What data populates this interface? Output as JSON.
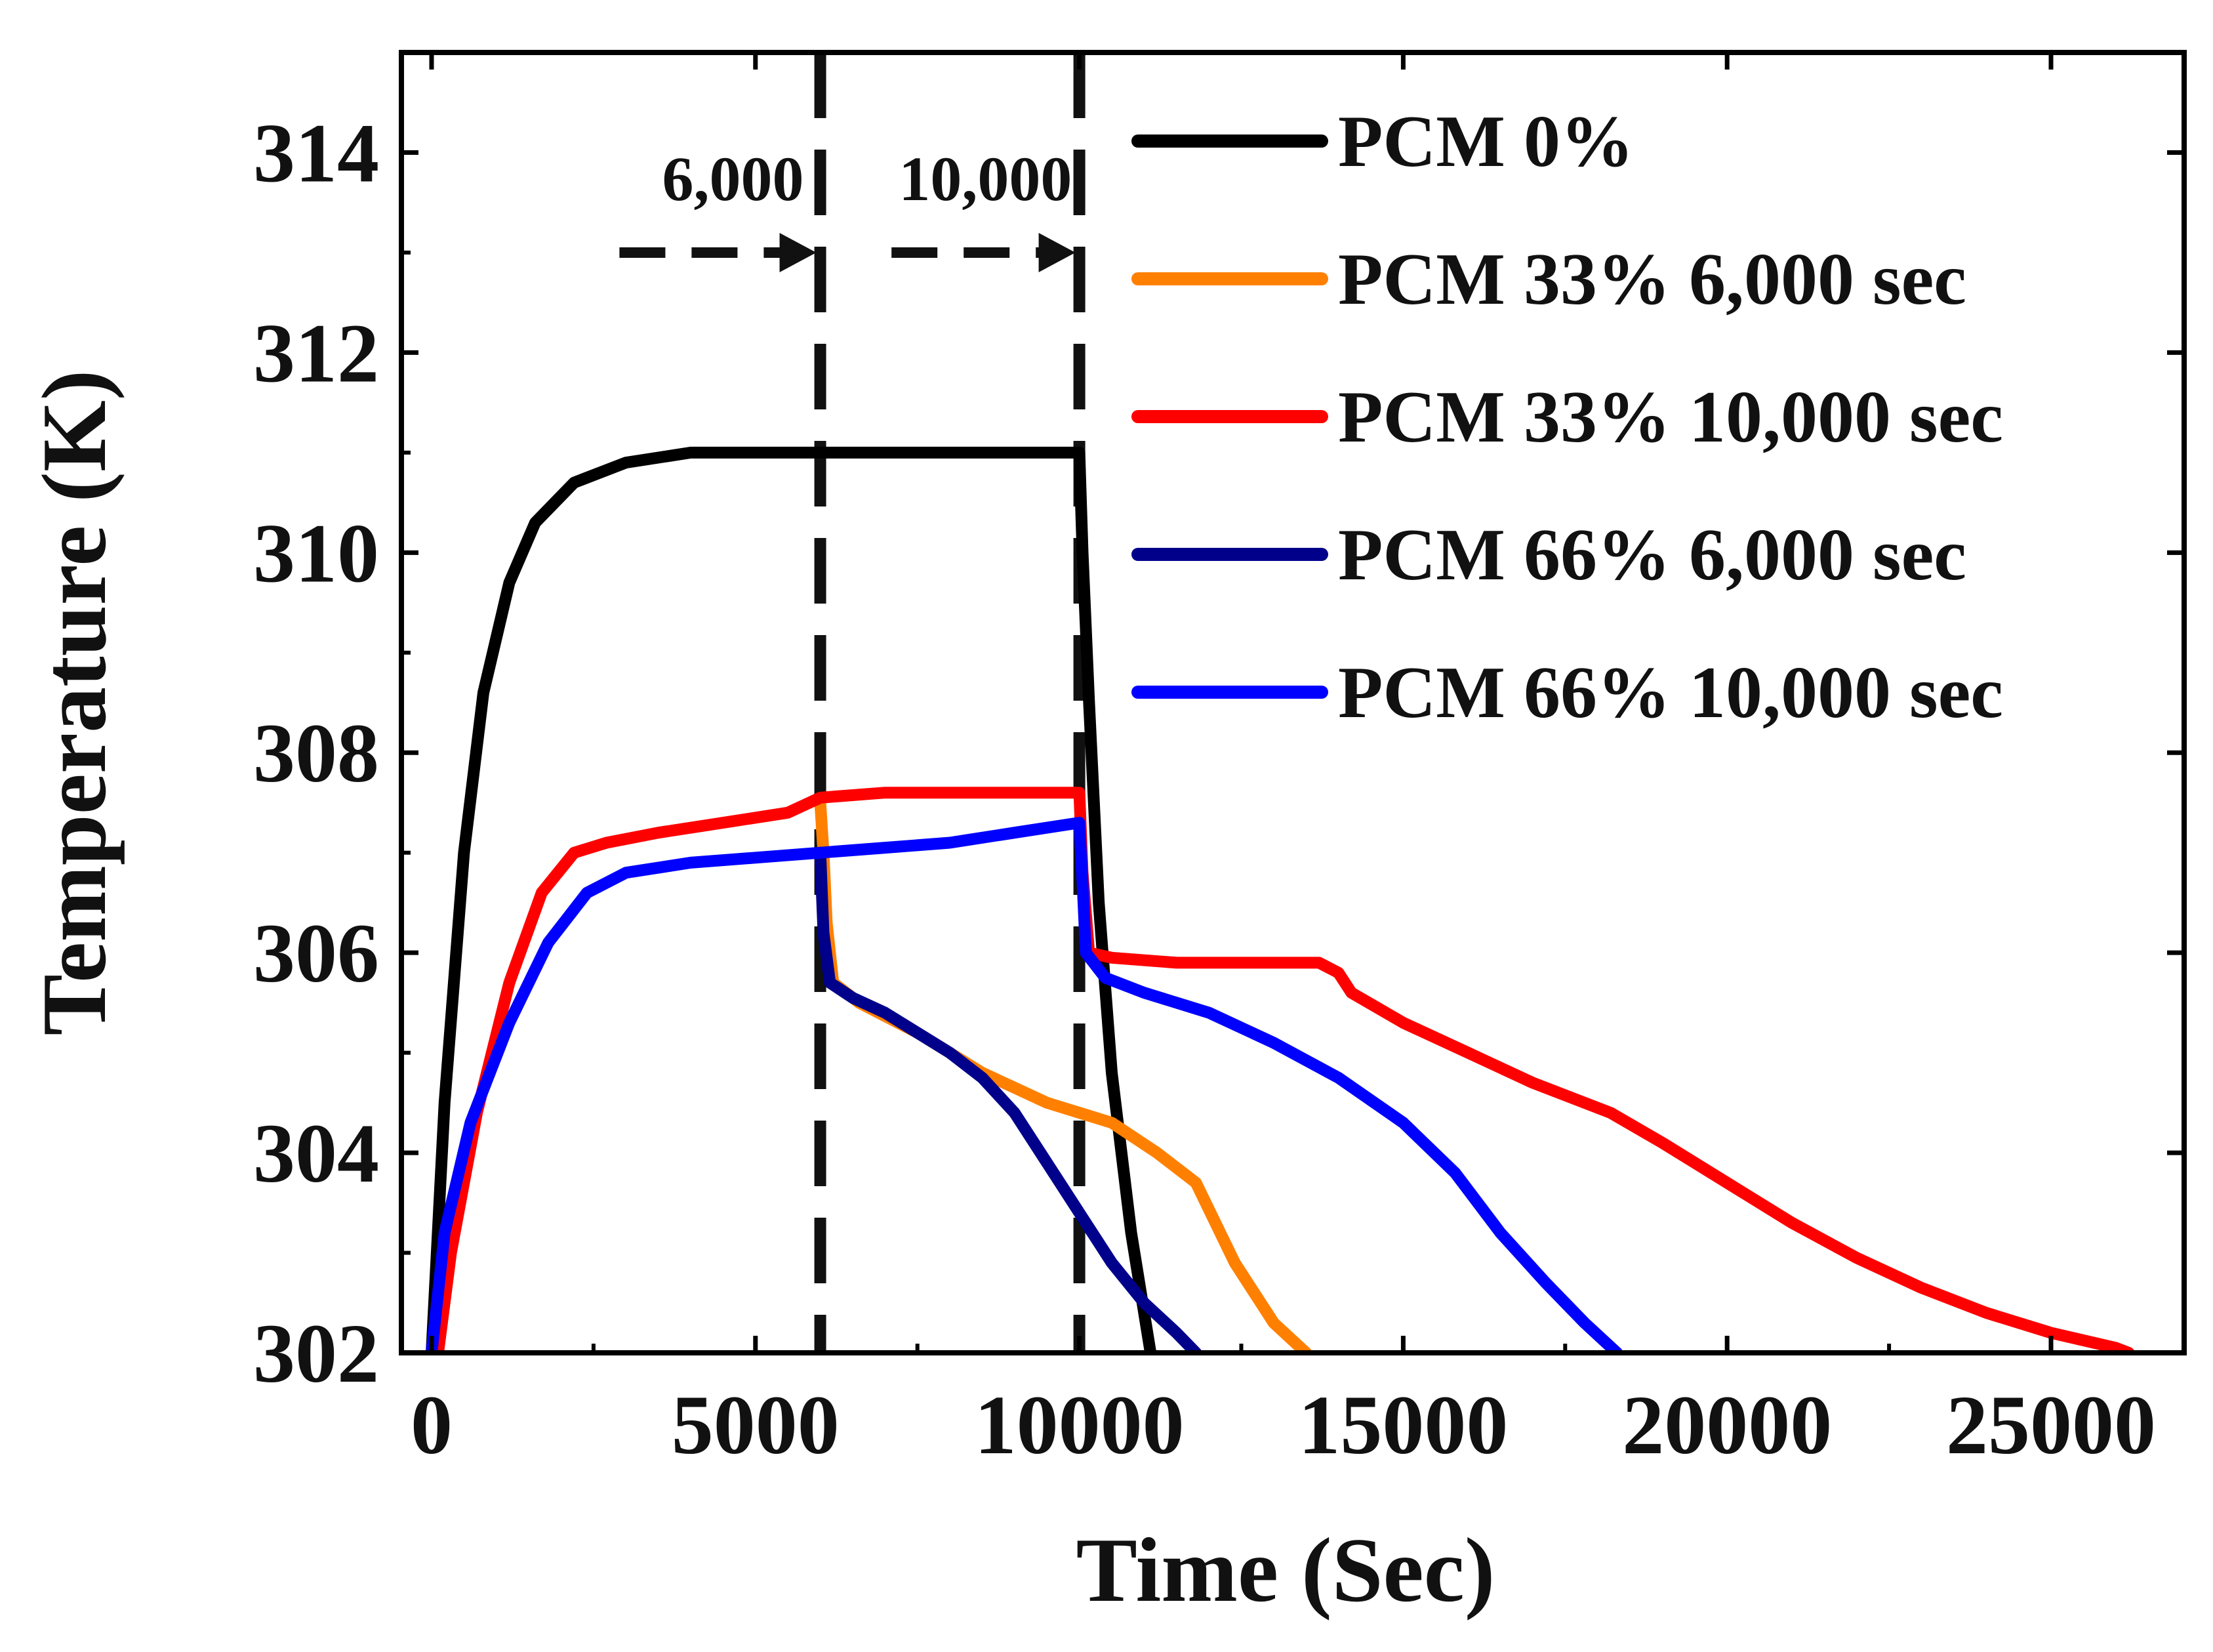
{
  "chart_data": {
    "type": "line",
    "xlabel": "Time (Sec)",
    "ylabel": "Temperature (K)",
    "xlim": [
      -600,
      26600
    ],
    "ylim": [
      302,
      315
    ],
    "x_ticks": [
      0,
      5000,
      10000,
      15000,
      20000,
      25000
    ],
    "x_tick_labels": [
      "0",
      "5000",
      "10000",
      "15000",
      "20000",
      "25000"
    ],
    "y_ticks": [
      302,
      304,
      306,
      308,
      310,
      312,
      314
    ],
    "y_tick_labels": [
      "302",
      "304",
      "306",
      "308",
      "310",
      "312",
      "314"
    ],
    "grid": false,
    "legend_position": "top-right",
    "vlines": [
      6000,
      10000
    ],
    "annotations": [
      {
        "text": "6,000",
        "x_start": 2900,
        "x_end": 6000,
        "y": 313
      },
      {
        "text": "10,000",
        "x_start": 7100,
        "x_end": 10000,
        "y": 313
      }
    ],
    "series": [
      {
        "name": "PCM 0%",
        "color": "#000000",
        "points": [
          [
            0,
            302
          ],
          [
            200,
            304.5
          ],
          [
            500,
            307
          ],
          [
            800,
            308.6
          ],
          [
            1200,
            309.7
          ],
          [
            1600,
            310.3
          ],
          [
            2200,
            310.7
          ],
          [
            3000,
            310.9
          ],
          [
            4000,
            311
          ],
          [
            6000,
            311
          ],
          [
            9000,
            311
          ],
          [
            10000,
            311
          ],
          [
            10050,
            310
          ],
          [
            10150,
            308.5
          ],
          [
            10300,
            306.5
          ],
          [
            10500,
            304.8
          ],
          [
            10800,
            303.2
          ],
          [
            11100,
            302
          ]
        ]
      },
      {
        "name": "PCM 33% 6,000 sec",
        "color": "#ff8000",
        "points": [
          [
            6000,
            307.5
          ],
          [
            6050,
            307
          ],
          [
            6100,
            306.3
          ],
          [
            6200,
            305.7
          ],
          [
            6600,
            305.5
          ],
          [
            7500,
            305.2
          ],
          [
            8500,
            304.8
          ],
          [
            9500,
            304.5
          ],
          [
            10500,
            304.3
          ],
          [
            11200,
            304
          ],
          [
            11800,
            303.7
          ],
          [
            12400,
            302.9
          ],
          [
            13000,
            302.3
          ],
          [
            13500,
            302
          ]
        ]
      },
      {
        "name": "PCM 33% 10,000 sec",
        "color": "#ff0000",
        "points": [
          [
            100,
            302
          ],
          [
            300,
            303
          ],
          [
            700,
            304.4
          ],
          [
            1200,
            305.7
          ],
          [
            1700,
            306.6
          ],
          [
            2200,
            307
          ],
          [
            2700,
            307.1
          ],
          [
            3500,
            307.2
          ],
          [
            4500,
            307.3
          ],
          [
            5500,
            307.4
          ],
          [
            6000,
            307.55
          ],
          [
            7000,
            307.6
          ],
          [
            8000,
            307.6
          ],
          [
            9000,
            307.6
          ],
          [
            10000,
            307.6
          ],
          [
            10050,
            306.8
          ],
          [
            10150,
            306
          ],
          [
            10500,
            305.95
          ],
          [
            11500,
            305.9
          ],
          [
            12500,
            305.9
          ],
          [
            13700,
            305.9
          ],
          [
            14000,
            305.8
          ],
          [
            14200,
            305.6
          ],
          [
            15000,
            305.3
          ],
          [
            16000,
            305
          ],
          [
            17000,
            304.7
          ],
          [
            18200,
            304.4
          ],
          [
            19000,
            304.1
          ],
          [
            20000,
            303.7
          ],
          [
            21000,
            303.3
          ],
          [
            22000,
            302.95
          ],
          [
            23000,
            302.65
          ],
          [
            24000,
            302.4
          ],
          [
            25000,
            302.2
          ],
          [
            26000,
            302.05
          ],
          [
            26200,
            302
          ]
        ]
      },
      {
        "name": "PCM 66% 6,000 sec",
        "color": "#00008b",
        "points": [
          [
            6000,
            307
          ],
          [
            6050,
            306.2
          ],
          [
            6150,
            305.7
          ],
          [
            6500,
            305.55
          ],
          [
            7000,
            305.4
          ],
          [
            7500,
            305.2
          ],
          [
            8000,
            305
          ],
          [
            8500,
            304.75
          ],
          [
            9000,
            304.4
          ],
          [
            9500,
            303.9
          ],
          [
            10000,
            303.4
          ],
          [
            10500,
            302.9
          ],
          [
            11000,
            302.5
          ],
          [
            11500,
            302.2
          ],
          [
            11800,
            302
          ]
        ]
      },
      {
        "name": "PCM 66% 10,000 sec",
        "color": "#0000ff",
        "points": [
          [
            0,
            302
          ],
          [
            200,
            303.2
          ],
          [
            600,
            304.3
          ],
          [
            1200,
            305.3
          ],
          [
            1800,
            306.1
          ],
          [
            2400,
            306.6
          ],
          [
            3000,
            306.8
          ],
          [
            4000,
            306.9
          ],
          [
            5000,
            306.95
          ],
          [
            6000,
            307
          ],
          [
            7000,
            307.05
          ],
          [
            8000,
            307.1
          ],
          [
            9000,
            307.2
          ],
          [
            10000,
            307.3
          ],
          [
            10050,
            306.7
          ],
          [
            10100,
            306
          ],
          [
            10400,
            305.75
          ],
          [
            11000,
            305.6
          ],
          [
            12000,
            305.4
          ],
          [
            13000,
            305.1
          ],
          [
            14000,
            304.75
          ],
          [
            15000,
            304.3
          ],
          [
            15800,
            303.8
          ],
          [
            16500,
            303.2
          ],
          [
            17200,
            302.7
          ],
          [
            17800,
            302.3
          ],
          [
            18300,
            302
          ]
        ]
      }
    ]
  }
}
